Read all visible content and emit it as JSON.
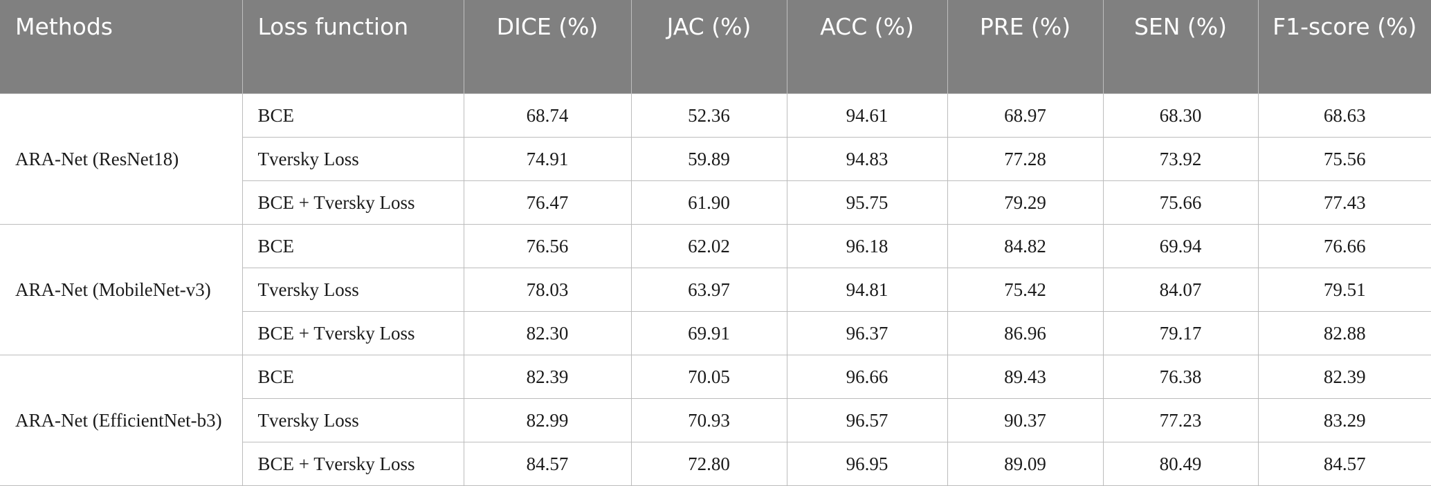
{
  "table": {
    "headers": [
      "Methods",
      "Loss function",
      "DICE (%)",
      "JAC (%)",
      "ACC (%)",
      "PRE (%)",
      "SEN (%)",
      "F1-score (%)"
    ],
    "groups": [
      {
        "method": "ARA-Net (ResNet18)",
        "rows": [
          {
            "loss": "BCE",
            "values": [
              "68.74",
              "52.36",
              "94.61",
              "68.97",
              "68.30",
              "68.63"
            ]
          },
          {
            "loss": "Tversky Loss",
            "values": [
              "74.91",
              "59.89",
              "94.83",
              "77.28",
              "73.92",
              "75.56"
            ]
          },
          {
            "loss": "BCE + Tversky Loss",
            "values": [
              "76.47",
              "61.90",
              "95.75",
              "79.29",
              "75.66",
              "77.43"
            ]
          }
        ]
      },
      {
        "method": "ARA-Net (MobileNet-v3)",
        "rows": [
          {
            "loss": "BCE",
            "values": [
              "76.56",
              "62.02",
              "96.18",
              "84.82",
              "69.94",
              "76.66"
            ]
          },
          {
            "loss": "Tversky Loss",
            "values": [
              "78.03",
              "63.97",
              "94.81",
              "75.42",
              "84.07",
              "79.51"
            ]
          },
          {
            "loss": "BCE + Tversky Loss",
            "values": [
              "82.30",
              "69.91",
              "96.37",
              "86.96",
              "79.17",
              "82.88"
            ]
          }
        ]
      },
      {
        "method": "ARA-Net (EfficientNet-b3)",
        "rows": [
          {
            "loss": "BCE",
            "values": [
              "82.39",
              "70.05",
              "96.66",
              "89.43",
              "76.38",
              "82.39"
            ]
          },
          {
            "loss": "Tversky Loss",
            "values": [
              "82.99",
              "70.93",
              "96.57",
              "90.37",
              "77.23",
              "83.29"
            ]
          },
          {
            "loss": "BCE + Tversky Loss",
            "values": [
              "84.57",
              "72.80",
              "96.95",
              "89.09",
              "80.49",
              "84.57"
            ]
          }
        ]
      }
    ]
  }
}
